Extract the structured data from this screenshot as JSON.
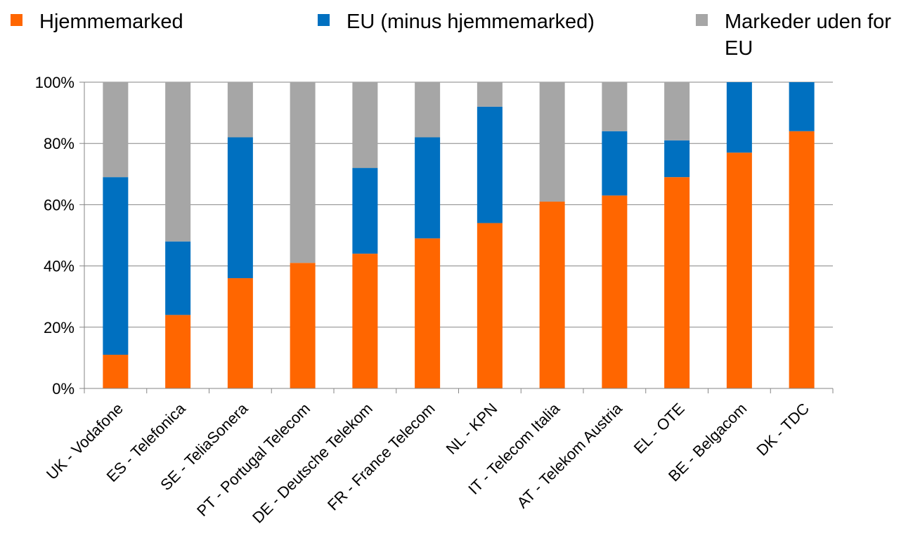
{
  "legend": {
    "items": [
      {
        "label": "Hjemmemarked",
        "color": "#FF6600"
      },
      {
        "label": "EU (minus hjemmemarked)",
        "color": "#0070C0"
      },
      {
        "label": "Markeder uden for EU",
        "color": "#A6A6A6"
      }
    ]
  },
  "chart_data": {
    "type": "bar",
    "stacked": true,
    "categories": [
      "UK - Vodafone",
      "ES - Telefonica",
      "SE - TeliaSonera",
      "PT - Portugal Telecom",
      "DE - Deutsche Telekom",
      "FR - France Telecom",
      "NL - KPN",
      "IT - Telecom Italia",
      "AT - Telekom Austria",
      "EL - OTE",
      "BE - Belgacom",
      "DK - TDC"
    ],
    "series": [
      {
        "name": "Hjemmemarked",
        "color": "#FF6600",
        "values": [
          11,
          24,
          36,
          41,
          44,
          49,
          54,
          61,
          63,
          69,
          77,
          84
        ]
      },
      {
        "name": "EU (minus hjemmemarked)",
        "color": "#0070C0",
        "values": [
          58,
          24,
          46,
          0,
          28,
          33,
          38,
          0,
          21,
          12,
          23,
          16
        ]
      },
      {
        "name": "Markeder uden for EU",
        "color": "#A6A6A6",
        "values": [
          31,
          52,
          18,
          59,
          28,
          18,
          8,
          39,
          16,
          19,
          0,
          0
        ]
      }
    ],
    "ylim": [
      0,
      100
    ],
    "yticks": [
      "0%",
      "20%",
      "40%",
      "60%",
      "80%",
      "100%"
    ],
    "grid": true,
    "legend_position": "top"
  }
}
